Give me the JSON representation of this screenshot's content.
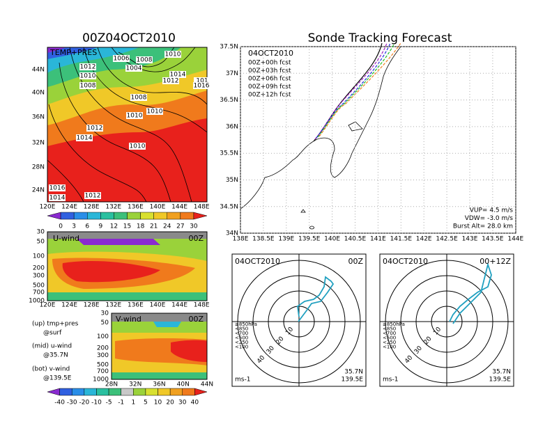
{
  "surface_panel": {
    "title": "00Z04OCT2010",
    "label": "TEMP+PRES",
    "contour_labels": [
      "1010",
      "1006",
      "1008",
      "1004",
      "1012",
      "1010",
      "1014",
      "1012",
      "1008",
      "1008",
      "1010",
      "1010",
      "1012",
      "1014",
      "1010",
      "1016",
      "1014",
      "1012",
      "101",
      "1016"
    ],
    "lat_labels": [
      "44N",
      "40N",
      "36N",
      "32N",
      "28N",
      "24N"
    ],
    "lon_labels": [
      "120E",
      "124E",
      "128E",
      "132E",
      "136E",
      "140E",
      "144E",
      "148E"
    ],
    "colorbar_labels": [
      "0",
      "3",
      "6",
      "9",
      "12",
      "15",
      "18",
      "21",
      "24",
      "27",
      "30"
    ]
  },
  "u_wind_panel": {
    "label": "U-wind",
    "time": "00Z",
    "pressure_labels": [
      "30",
      "50",
      "100",
      "200",
      "300",
      "500",
      "700",
      "1000"
    ],
    "lon_labels": [
      "120E",
      "124E",
      "128E",
      "132E",
      "136E",
      "140E",
      "144E",
      "148E"
    ]
  },
  "v_wind_panel": {
    "label": "V-wind",
    "time": "00Z",
    "pressure_labels": [
      "30",
      "50",
      "100",
      "200",
      "300",
      "500",
      "700",
      "1000"
    ],
    "lat_labels": [
      "28N",
      "32N",
      "36N",
      "40N",
      "44N"
    ]
  },
  "notes": [
    "(up) tmp+pres",
    "@surf",
    "(mid) u-wind",
    "@35.7N",
    "(bot) v-wind",
    "@139.5E"
  ],
  "wind_colorbar_labels": [
    "-40",
    "-30",
    "-20",
    "-10",
    "-5",
    "-1",
    "1",
    "5",
    "10",
    "20",
    "30",
    "40"
  ],
  "track_panel": {
    "title": "Sonde Tracking Forecast",
    "legend_date": "04OCT2010",
    "legend": [
      "00Z+00h fcst",
      "00Z+03h fcst",
      "00Z+06h fcst",
      "00Z+09h fcst",
      "00Z+12h fcst"
    ],
    "lat_labels": [
      "37.5N",
      "37N",
      "36.5N",
      "36N",
      "35.5N",
      "35N",
      "34.5N",
      "34N"
    ],
    "lon_labels": [
      "138E",
      "138.5E",
      "139E",
      "139.5E",
      "140E",
      "140.5E",
      "141E",
      "141.5E",
      "142E",
      "142.5E",
      "143E",
      "143.5E",
      "144E"
    ],
    "stats": [
      "VUP= 4.5 m/s",
      "VDW= -3.0 m/s",
      "Burst Alt= 28.0 km"
    ]
  },
  "hodographs": [
    {
      "date": "04OCT2010",
      "time": "00Z",
      "lat": "35.7N",
      "lon": "139.5E",
      "units": "ms-1",
      "ring_labels": [
        "10",
        "20",
        "30",
        "40"
      ],
      "level_legend": [
        "≥850hPa",
        "<850",
        "<700",
        "<500",
        "<250",
        "<100"
      ]
    },
    {
      "date": "04OCT2010",
      "time": "00+12Z",
      "lat": "35.7N",
      "lon": "139.5E",
      "units": "ms-1",
      "ring_labels": [
        "10",
        "20",
        "30",
        "40"
      ],
      "level_legend": [
        "≥850hPa",
        "<850",
        "<700",
        "<500",
        "<250",
        "<100"
      ]
    }
  ]
}
